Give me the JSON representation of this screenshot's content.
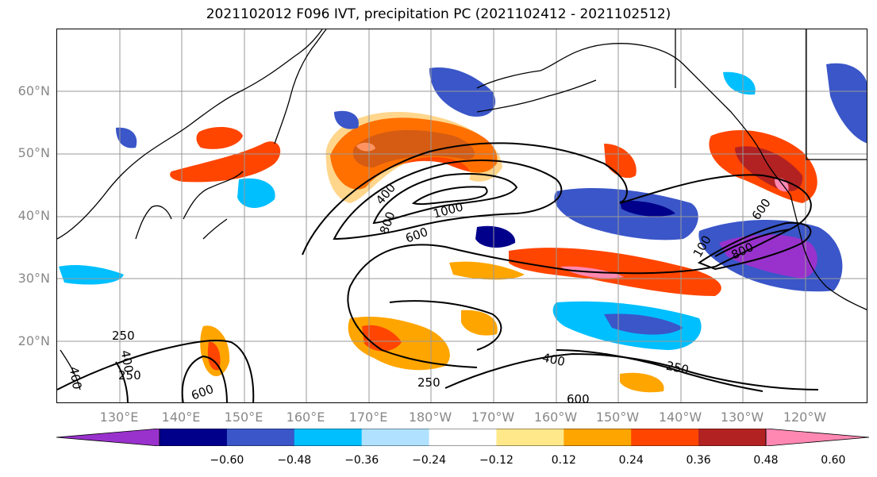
{
  "title": "2021102012 F096 IVT, precipitation PC (2021102412 - 2021102512)",
  "lat_labels": [
    "60°N",
    "50°N",
    "40°N",
    "30°N",
    "20°N"
  ],
  "lon_labels": [
    "130°E",
    "140°E",
    "150°E",
    "160°E",
    "170°E",
    "180°W",
    "170°W",
    "160°W",
    "150°W",
    "140°W",
    "130°W",
    "120°W"
  ],
  "colorbar": {
    "ticks": [
      "−0.60",
      "−0.48",
      "−0.36",
      "−0.24",
      "−0.12",
      "0.12",
      "0.24",
      "0.36",
      "0.48",
      "0.60"
    ],
    "colors": [
      "#9932cc",
      "#00008b",
      "#3a56c8",
      "#00bfff",
      "#b0e2ff",
      "#ffffff",
      "#ffe88a",
      "#ffa500",
      "#ff4500",
      "#b22222",
      "#ff88b2"
    ]
  },
  "contour_labels": [
    "400",
    "800",
    "1000",
    "600",
    "250",
    "400",
    "250",
    "600",
    "400",
    "250",
    "250",
    "400",
    "600",
    "600",
    "800",
    "100"
  ]
}
